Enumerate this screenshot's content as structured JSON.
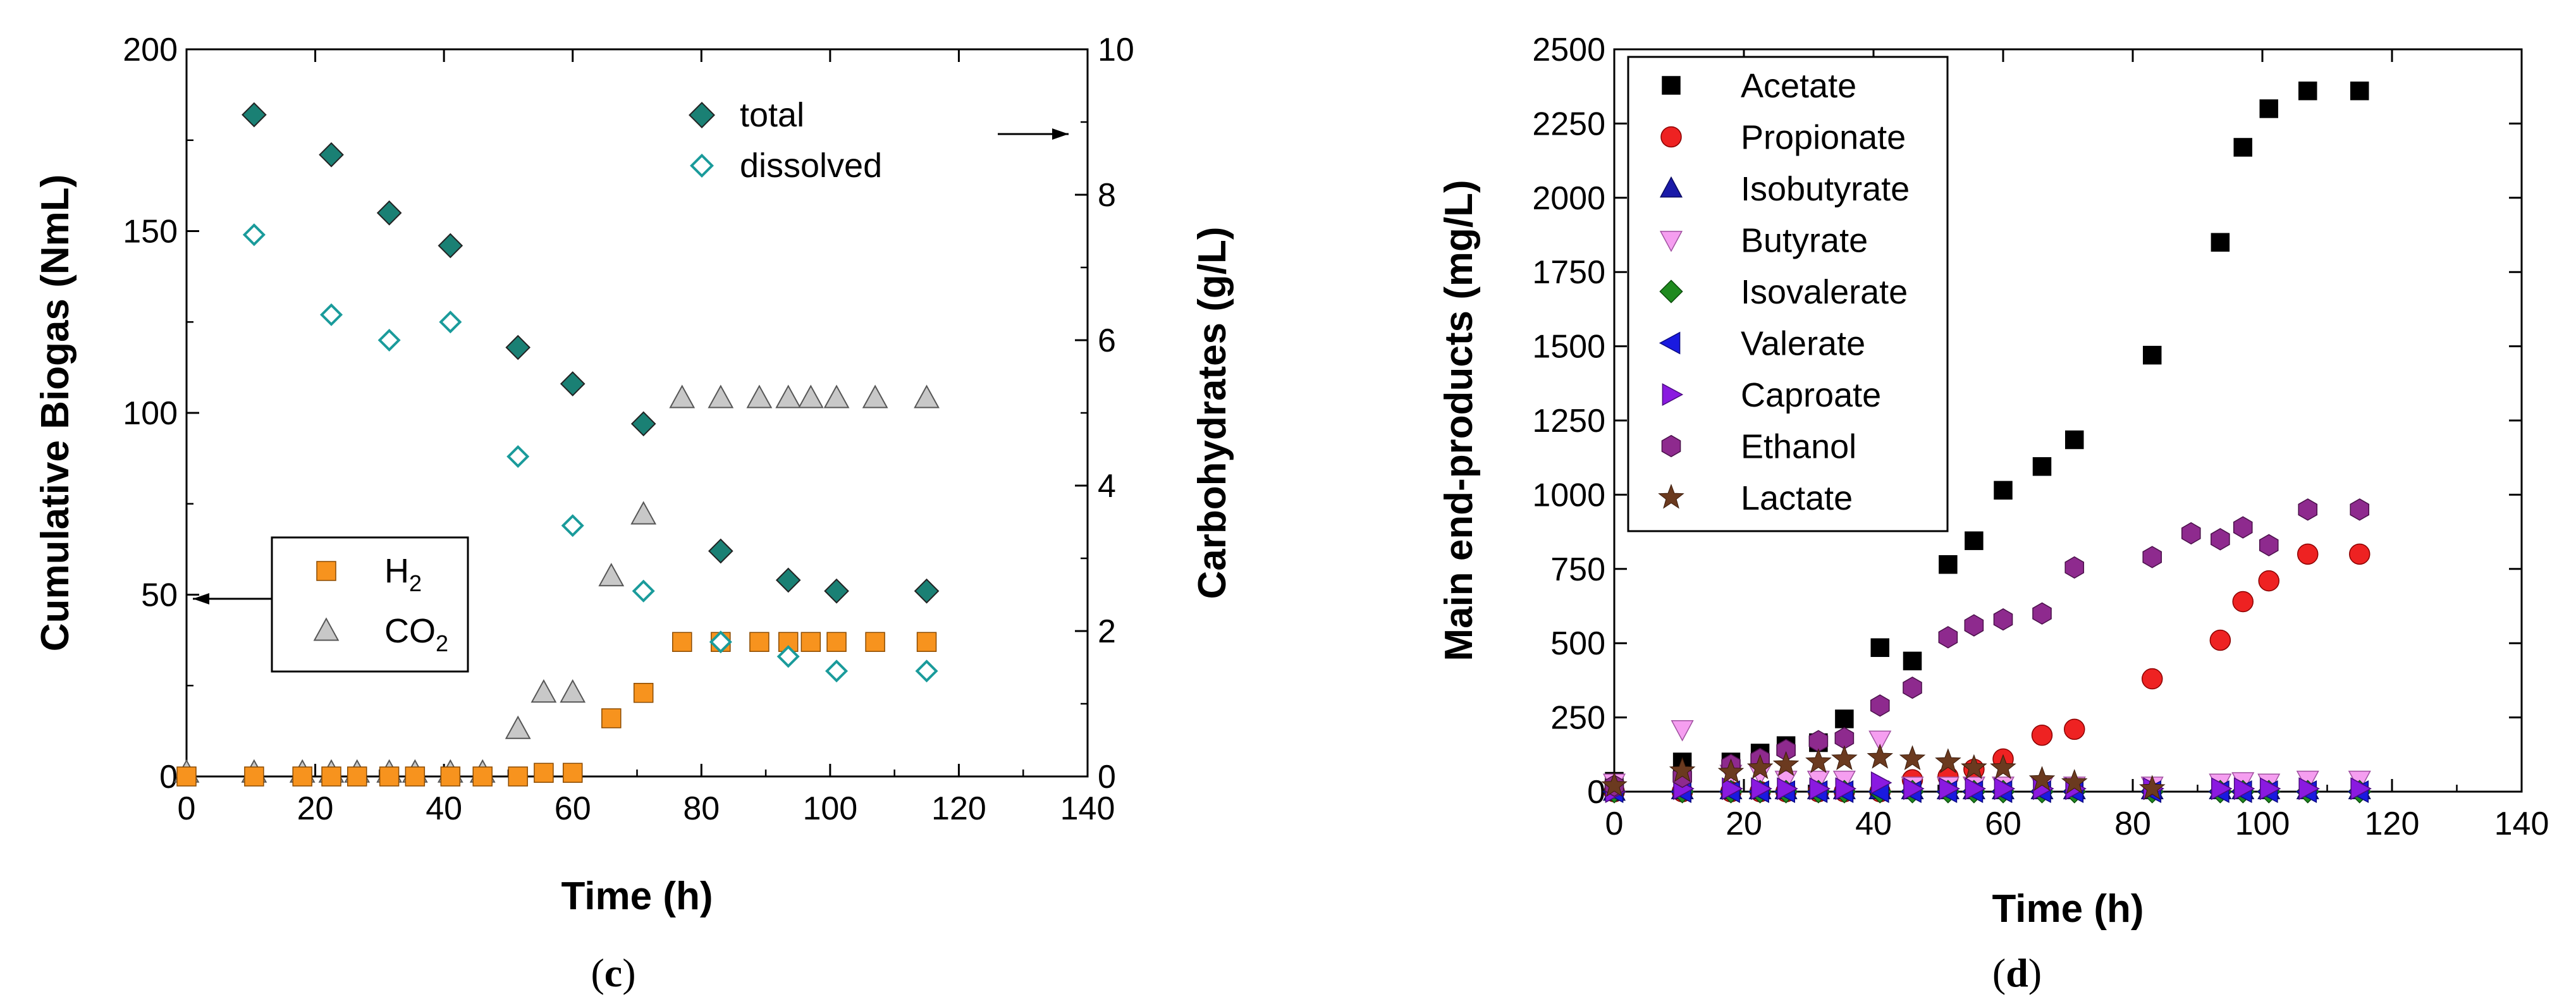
{
  "chart_data": [
    {
      "type": "scatter",
      "panel": "(c)",
      "caption_letter": "c",
      "xlabel": "Time (h)",
      "ylabel": "Cumulative Biogas (NmL)",
      "y2label": "Carbohydrates (g/L)",
      "xlim": [
        0,
        140
      ],
      "ylim": [
        0,
        200
      ],
      "y2lim": [
        0,
        10
      ],
      "xticks": [
        0,
        20,
        40,
        60,
        80,
        100,
        120,
        140
      ],
      "yticks": [
        0,
        50,
        100,
        150,
        200
      ],
      "y2ticks": [
        0,
        2,
        4,
        6,
        8,
        10
      ],
      "grid": false,
      "legends": [
        {
          "placement": "top-right",
          "arrow": "right",
          "entries": [
            "total",
            "dissolved"
          ]
        },
        {
          "placement": "center-left",
          "arrow": "left",
          "entries": [
            "H2",
            "CO2"
          ]
        }
      ],
      "series": [
        {
          "name": "total",
          "axis": "right",
          "marker": "diamond-filled",
          "color": "#1a8074",
          "x": [
            10.5,
            22.5,
            31.5,
            41,
            51.5,
            60,
            71,
            83,
            93.5,
            101,
            115
          ],
          "y": [
            9.1,
            8.55,
            7.75,
            7.3,
            5.9,
            5.4,
            4.85,
            3.1,
            2.7,
            2.55,
            2.55
          ]
        },
        {
          "name": "dissolved",
          "axis": "right",
          "marker": "diamond-open",
          "color": "#1a9b9b",
          "x": [
            10.5,
            22.5,
            31.5,
            41,
            51.5,
            60,
            71,
            83,
            93.5,
            101,
            115
          ],
          "y": [
            7.45,
            6.35,
            6.0,
            6.25,
            4.4,
            3.45,
            2.55,
            1.85,
            1.65,
            1.45,
            1.45
          ]
        },
        {
          "name": "H2",
          "label_main": "H",
          "label_sub": "2",
          "axis": "left",
          "marker": "square",
          "color": "#f7931e",
          "x": [
            0,
            10.5,
            18,
            22.5,
            26.5,
            31.5,
            35.5,
            41,
            46,
            51.5,
            55.5,
            60,
            66,
            71,
            77,
            83,
            89,
            93.5,
            97,
            101,
            107,
            115
          ],
          "y": [
            0,
            0,
            0,
            0,
            0,
            0,
            0,
            0,
            0,
            0,
            1,
            1,
            16,
            23,
            37,
            37,
            37,
            37,
            37,
            37,
            37,
            37
          ]
        },
        {
          "name": "CO2",
          "label_main": "CO",
          "label_sub": "2",
          "axis": "left",
          "marker": "triangle",
          "color": "#c8c8c8",
          "x": [
            0,
            10.5,
            18,
            22.5,
            26.5,
            31.5,
            35.5,
            41,
            46,
            51.5,
            55.5,
            60,
            66,
            71,
            77,
            83,
            89,
            93.5,
            97,
            101,
            107,
            115
          ],
          "y": [
            1,
            1,
            1,
            1,
            1,
            1,
            1,
            1,
            1,
            13,
            23,
            23,
            55,
            72,
            104,
            104,
            104,
            104,
            104,
            104,
            104,
            104
          ]
        }
      ]
    },
    {
      "type": "scatter",
      "panel": "(d)",
      "caption_letter": "d",
      "xlabel": "Time (h)",
      "ylabel": "Main end-products (mg/L)",
      "xlim": [
        0,
        140
      ],
      "ylim": [
        0,
        2500
      ],
      "xticks": [
        0,
        20,
        40,
        60,
        80,
        100,
        120,
        140
      ],
      "yticks": [
        0,
        250,
        500,
        750,
        1000,
        1250,
        1500,
        1750,
        2000,
        2250,
        2500
      ],
      "grid": false,
      "legends": [
        {
          "placement": "top-left",
          "entries": [
            "Acetate",
            "Propionate",
            "Isobutyrate",
            "Butyrate",
            "Isovalerate",
            "Valerate",
            "Caproate",
            "Ethanol",
            "Lactate"
          ]
        }
      ],
      "series": [
        {
          "name": "Acetate",
          "marker": "square",
          "color": "#000000",
          "x": [
            0,
            10.5,
            18,
            22.5,
            26.5,
            31.5,
            35.5,
            41,
            46,
            51.5,
            55.5,
            60,
            66,
            71,
            83,
            93.5,
            97,
            101,
            107,
            115
          ],
          "y": [
            35,
            100,
            100,
            130,
            155,
            165,
            245,
            485,
            440,
            765,
            845,
            1015,
            1095,
            1185,
            1470,
            1850,
            2170,
            2300,
            2360,
            2360
          ]
        },
        {
          "name": "Propionate",
          "marker": "circle",
          "color": "#ee2222",
          "x": [
            0,
            10.5,
            18,
            22.5,
            26.5,
            31.5,
            35.5,
            41,
            46,
            51.5,
            55.5,
            60,
            66,
            71,
            83,
            93.5,
            97,
            101,
            107,
            115
          ],
          "y": [
            0,
            0,
            0,
            0,
            0,
            0,
            0,
            0,
            40,
            50,
            75,
            110,
            190,
            210,
            380,
            510,
            640,
            710,
            800,
            800
          ]
        },
        {
          "name": "Isobutyrate",
          "marker": "triangle-up",
          "color": "#1a1aa8",
          "x": [
            0,
            10.5,
            18,
            22.5,
            26.5,
            31.5,
            35.5,
            41,
            46,
            51.5,
            55.5,
            60,
            66,
            71,
            83,
            93.5,
            97,
            101,
            107,
            115
          ],
          "y": [
            0,
            5,
            5,
            5,
            5,
            5,
            5,
            5,
            5,
            5,
            5,
            5,
            5,
            5,
            5,
            5,
            5,
            5,
            5,
            5
          ]
        },
        {
          "name": "Butyrate",
          "marker": "triangle-down",
          "color": "#f59ef0",
          "x": [
            0,
            10.5,
            18,
            22.5,
            26.5,
            31.5,
            35.5,
            41,
            46,
            51.5,
            55.5,
            60,
            66,
            71,
            83,
            93.5,
            97,
            101,
            107,
            115
          ],
          "y": [
            30,
            210,
            60,
            60,
            40,
            40,
            40,
            175,
            20,
            20,
            20,
            20,
            20,
            20,
            20,
            30,
            35,
            30,
            40,
            40
          ]
        },
        {
          "name": "Isovalerate",
          "marker": "diamond",
          "color": "#1f8a1f",
          "x": [
            0,
            10.5,
            18,
            22.5,
            26.5,
            31.5,
            35.5,
            41,
            46,
            51.5,
            55.5,
            60,
            66,
            71,
            83,
            93.5,
            97,
            101,
            107,
            115
          ],
          "y": [
            0,
            0,
            0,
            0,
            0,
            0,
            0,
            0,
            0,
            0,
            0,
            0,
            0,
            0,
            0,
            0,
            0,
            0,
            0,
            0
          ]
        },
        {
          "name": "Valerate",
          "marker": "triangle-left",
          "color": "#1a1ae0",
          "x": [
            0,
            10.5,
            18,
            22.5,
            26.5,
            31.5,
            35.5,
            41,
            46,
            51.5,
            55.5,
            60,
            66,
            71,
            83,
            93.5,
            97,
            101,
            107,
            115
          ],
          "y": [
            0,
            0,
            0,
            0,
            0,
            0,
            0,
            0,
            0,
            0,
            0,
            0,
            0,
            0,
            0,
            0,
            0,
            0,
            0,
            0
          ]
        },
        {
          "name": "Caproate",
          "marker": "triangle-right",
          "color": "#8a1ae0",
          "x": [
            0,
            10.5,
            18,
            22.5,
            26.5,
            31.5,
            35.5,
            41,
            46,
            51.5,
            55.5,
            60,
            66,
            71,
            83,
            93.5,
            97,
            101,
            107,
            115
          ],
          "y": [
            0,
            10,
            10,
            10,
            10,
            10,
            10,
            30,
            10,
            10,
            10,
            10,
            10,
            10,
            10,
            10,
            10,
            10,
            10,
            10
          ]
        },
        {
          "name": "Ethanol",
          "marker": "hexagon",
          "color": "#8e2a8e",
          "x": [
            0,
            10.5,
            18,
            22.5,
            26.5,
            31.5,
            35.5,
            41,
            46,
            51.5,
            55.5,
            60,
            66,
            71,
            83,
            89,
            93.5,
            97,
            101,
            107,
            115
          ],
          "y": [
            20,
            50,
            90,
            110,
            140,
            170,
            180,
            290,
            350,
            520,
            560,
            580,
            600,
            755,
            790,
            870,
            850,
            890,
            830,
            950,
            950
          ]
        },
        {
          "name": "Lactate",
          "marker": "star",
          "color": "#6b3a1f",
          "x": [
            0,
            10.5,
            18,
            22.5,
            26.5,
            31.5,
            35.5,
            41,
            46,
            51.5,
            55.5,
            60,
            66,
            71,
            83
          ],
          "y": [
            20,
            70,
            65,
            80,
            90,
            100,
            110,
            115,
            110,
            100,
            80,
            80,
            40,
            30,
            10
          ]
        }
      ]
    }
  ]
}
